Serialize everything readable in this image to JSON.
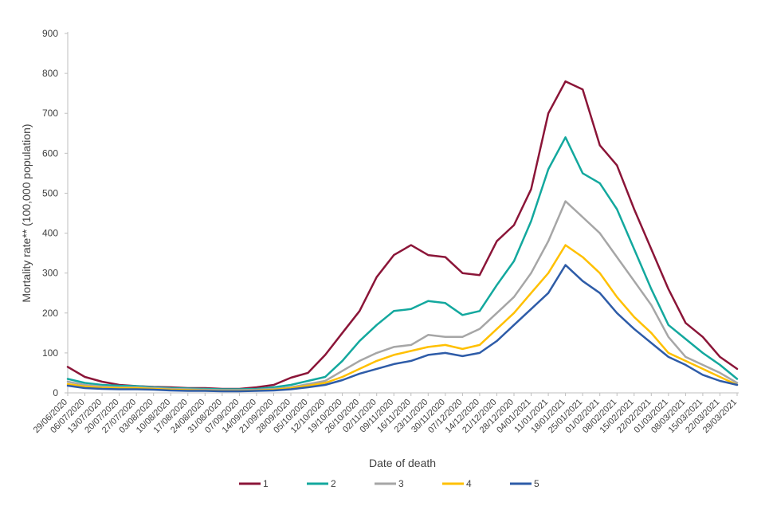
{
  "chart_data": {
    "type": "line",
    "title": "",
    "xlabel": "Date of death",
    "ylabel": "Mortality rate** (100,000 population)",
    "ylim": [
      0,
      900
    ],
    "yticks": [
      0,
      100,
      200,
      300,
      400,
      500,
      600,
      700,
      800,
      900
    ],
    "grid": false,
    "legend_position": "bottom",
    "x_tick_labels": [
      "29/06/2020",
      "06/07/2020",
      "13/07/2020",
      "20/07/2020",
      "27/07/2020",
      "03/08/2020",
      "10/08/2020",
      "17/08/2020",
      "24/08/2020",
      "31/08/2020",
      "07/09/2020",
      "14/09/2020",
      "21/09/2020",
      "28/09/2020",
      "05/10/2020",
      "12/10/2020",
      "19/10/2020",
      "26/10/2020",
      "02/11/2020",
      "09/11/2020",
      "16/11/2020",
      "23/11/2020",
      "30/11/2020",
      "07/12/2020",
      "14/12/2020",
      "21/12/2020",
      "28/12/2020",
      "04/01/2021",
      "11/01/2021",
      "18/01/2021",
      "25/01/2021",
      "01/02/2021",
      "08/02/2021",
      "15/02/2021",
      "22/02/2021",
      "01/03/2021",
      "08/03/2021",
      "15/03/2021",
      "22/03/2021",
      "29/03/2021"
    ],
    "series": [
      {
        "name": "1",
        "color": "#8b1538",
        "values": [
          65,
          40,
          28,
          20,
          17,
          15,
          14,
          12,
          12,
          10,
          10,
          14,
          20,
          38,
          50,
          95,
          150,
          205,
          290,
          345,
          370,
          345,
          340,
          300,
          295,
          380,
          420,
          510,
          700,
          780,
          760,
          620,
          570,
          460,
          360,
          260,
          175,
          140,
          90,
          60
        ]
      },
      {
        "name": "2",
        "color": "#13a89e",
        "values": [
          35,
          25,
          20,
          18,
          17,
          14,
          12,
          11,
          10,
          9,
          9,
          10,
          14,
          20,
          30,
          40,
          80,
          130,
          170,
          205,
          210,
          230,
          225,
          195,
          205,
          270,
          330,
          430,
          560,
          640,
          550,
          525,
          460,
          360,
          260,
          170,
          135,
          100,
          70,
          35
        ]
      },
      {
        "name": "3",
        "color": "#a6a6a6",
        "values": [
          28,
          20,
          16,
          14,
          14,
          12,
          10,
          9,
          8,
          7,
          7,
          8,
          10,
          14,
          22,
          30,
          55,
          80,
          100,
          115,
          120,
          145,
          140,
          140,
          160,
          200,
          240,
          300,
          380,
          480,
          440,
          400,
          340,
          280,
          220,
          140,
          90,
          70,
          50,
          25
        ]
      },
      {
        "name": "4",
        "color": "#ffc000",
        "values": [
          22,
          16,
          13,
          12,
          12,
          10,
          8,
          7,
          6,
          5,
          5,
          6,
          8,
          12,
          18,
          25,
          40,
          60,
          80,
          95,
          105,
          115,
          120,
          110,
          120,
          160,
          200,
          250,
          300,
          370,
          340,
          300,
          240,
          190,
          150,
          100,
          80,
          60,
          40,
          20
        ]
      },
      {
        "name": "5",
        "color": "#2e5ca8",
        "values": [
          18,
          12,
          10,
          9,
          9,
          8,
          6,
          5,
          5,
          4,
          4,
          5,
          6,
          9,
          14,
          20,
          32,
          48,
          60,
          72,
          80,
          95,
          100,
          92,
          100,
          130,
          170,
          210,
          250,
          320,
          280,
          250,
          200,
          160,
          125,
          90,
          70,
          45,
          30,
          20
        ]
      }
    ]
  }
}
